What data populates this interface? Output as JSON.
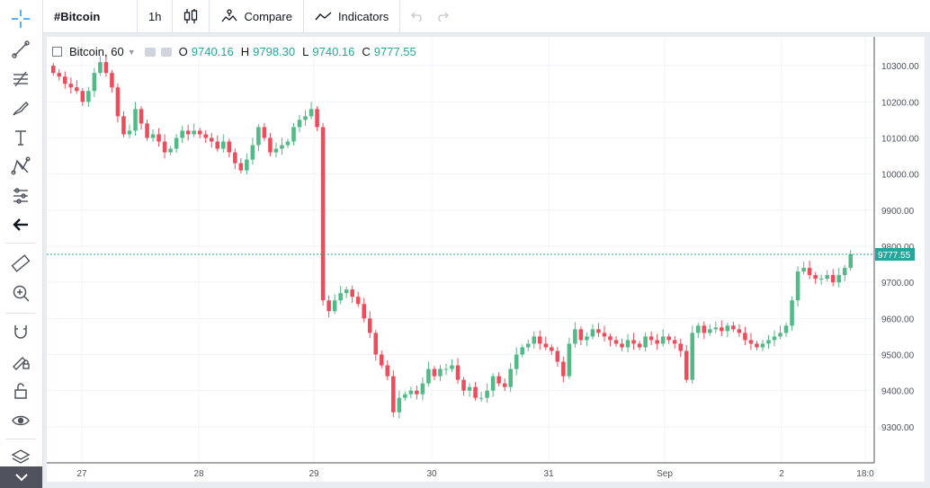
{
  "topbar": {
    "symbol": "#Bitcoin",
    "interval": "1h",
    "compare": "Compare",
    "indicators": "Indicators"
  },
  "legend": {
    "symbol": "Bitcoin, 60",
    "o_label": "O",
    "o_value": "9740.16",
    "h_label": "H",
    "h_value": "9798.30",
    "l_label": "L",
    "l_value": "9740.16",
    "c_label": "C",
    "c_value": "9777.55"
  },
  "toolbar": {
    "icons": [
      "crosshair-icon",
      "trend-line-icon",
      "fib-tool-icon",
      "brush-icon",
      "text-icon",
      "pattern-icon",
      "prediction-icon",
      "back-arrow-icon",
      "ruler-icon",
      "zoom-in-icon",
      "magnet-icon",
      "lock-drawings-icon",
      "unlock-icon",
      "eye-icon",
      "layers-icon",
      "collapse-icon"
    ]
  },
  "colors": {
    "up": "#53b987",
    "down": "#eb4d5c",
    "price_line": "#26a69a",
    "grid": "#f0f3fa",
    "axis_text": "#4c525e"
  },
  "chart_data": {
    "type": "candlestick",
    "title": "Bitcoin, 60",
    "x_ticks": [
      "27",
      "28",
      "29",
      "30",
      "31",
      "Sep",
      "2",
      "18:0"
    ],
    "y_ticks": [
      "10300.00",
      "10200.00",
      "10100.00",
      "10000.00",
      "9900.00",
      "9800.00",
      "9700.00",
      "9600.00",
      "9500.00",
      "9400.00",
      "9300.00"
    ],
    "ylim": [
      9200,
      10380
    ],
    "grid": true,
    "last_price": "9777.55",
    "candles_close": [
      10280,
      10270,
      10250,
      10240,
      10230,
      10200,
      10230,
      10280,
      10310,
      10280,
      10240,
      10160,
      10110,
      10120,
      10180,
      10140,
      10100,
      10110,
      10090,
      10060,
      10070,
      10100,
      10120,
      10110,
      10120,
      10110,
      10100,
      10090,
      10070,
      10090,
      10060,
      10030,
      10010,
      10040,
      10080,
      10130,
      10100,
      10060,
      10070,
      10080,
      10090,
      10130,
      10150,
      10160,
      10180,
      10130,
      9650,
      9620,
      9650,
      9670,
      9680,
      9660,
      9640,
      9600,
      9560,
      9500,
      9470,
      9440,
      9340,
      9380,
      9390,
      9400,
      9390,
      9420,
      9460,
      9440,
      9460,
      9460,
      9470,
      9430,
      9400,
      9410,
      9380,
      9380,
      9400,
      9440,
      9420,
      9410,
      9460,
      9500,
      9520,
      9530,
      9550,
      9530,
      9520,
      9510,
      9480,
      9440,
      9530,
      9570,
      9540,
      9550,
      9570,
      9560,
      9550,
      9540,
      9530,
      9520,
      9540,
      9530,
      9520,
      9550,
      9540,
      9530,
      9550,
      9540,
      9530,
      9510,
      9430,
      9560,
      9580,
      9560,
      9570,
      9575,
      9565,
      9580,
      9570,
      9560,
      9540,
      9530,
      9520,
      9530,
      9540,
      9550,
      9560,
      9580,
      9650,
      9730,
      9740,
      9720,
      9710,
      9710,
      9720,
      9700,
      9720,
      9740,
      9778
    ]
  }
}
